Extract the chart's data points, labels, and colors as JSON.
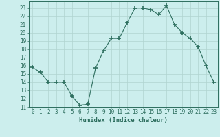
{
  "x": [
    0,
    1,
    2,
    3,
    4,
    5,
    6,
    7,
    8,
    9,
    10,
    11,
    12,
    13,
    14,
    15,
    16,
    17,
    18,
    19,
    20,
    21,
    22,
    23
  ],
  "y": [
    15.8,
    15.2,
    14.0,
    14.0,
    14.0,
    12.3,
    11.2,
    11.3,
    15.7,
    17.8,
    19.3,
    19.3,
    21.2,
    23.0,
    23.0,
    22.8,
    22.2,
    23.3,
    21.0,
    20.0,
    19.3,
    18.3,
    16.0,
    14.0
  ],
  "xlabel": "Humidex (Indice chaleur)",
  "ylabel": "",
  "xlim": [
    -0.5,
    23.5
  ],
  "ylim": [
    11,
    23.8
  ],
  "yticks": [
    11,
    12,
    13,
    14,
    15,
    16,
    17,
    18,
    19,
    20,
    21,
    22,
    23
  ],
  "xticks": [
    0,
    1,
    2,
    3,
    4,
    5,
    6,
    7,
    8,
    9,
    10,
    11,
    12,
    13,
    14,
    15,
    16,
    17,
    18,
    19,
    20,
    21,
    22,
    23
  ],
  "line_color": "#2d6e5e",
  "marker": "+",
  "marker_size": 4.0,
  "marker_linewidth": 1.2,
  "bg_color": "#cceeed",
  "grid_color": "#b0d4d0",
  "label_color": "#2d6e5e",
  "tick_color": "#2d6e5e",
  "spine_color": "#2d6e5e",
  "tick_fontsize": 5.5,
  "xlabel_fontsize": 6.5
}
